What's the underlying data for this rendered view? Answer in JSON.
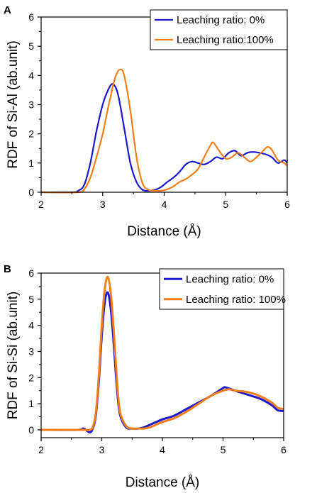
{
  "chart_data": [
    {
      "type": "line",
      "panel_label": "A",
      "xlabel": "Distance (Å)",
      "ylabel": "RDF of Si-Al (ab.unit)",
      "xlim": [
        2,
        6
      ],
      "ylim": [
        0,
        6
      ],
      "xticks": [
        "2",
        "3",
        "4",
        "5",
        "6"
      ],
      "yticks": [
        "0",
        "1",
        "2",
        "3",
        "4",
        "5",
        "6"
      ],
      "grid": false,
      "legend": "top-right",
      "series": [
        {
          "name": "Leaching ratio: 0%",
          "color": "#1a1acc",
          "x": [
            2.0,
            2.5,
            2.6,
            2.7,
            2.8,
            2.9,
            3.0,
            3.1,
            3.17,
            3.25,
            3.35,
            3.45,
            3.55,
            3.65,
            3.75,
            3.85,
            3.95,
            4.05,
            4.15,
            4.25,
            4.35,
            4.45,
            4.55,
            4.65,
            4.75,
            4.85,
            4.95,
            5.05,
            5.15,
            5.25,
            5.35,
            5.45,
            5.55,
            5.65,
            5.75,
            5.85,
            5.95,
            6.0
          ],
          "y": [
            0,
            0,
            0.05,
            0.25,
            1.0,
            2.1,
            3.0,
            3.55,
            3.7,
            3.35,
            2.2,
            1.0,
            0.35,
            0.08,
            0.05,
            0.08,
            0.18,
            0.35,
            0.5,
            0.7,
            0.95,
            1.05,
            1.0,
            0.95,
            1.05,
            1.2,
            1.15,
            1.35,
            1.42,
            1.25,
            1.35,
            1.38,
            1.35,
            1.3,
            1.2,
            1.0,
            1.1,
            1.0
          ]
        },
        {
          "name": "Leaching ratio:100%",
          "color": "#f07f1a",
          "x": [
            2.0,
            2.6,
            2.7,
            2.8,
            2.9,
            3.0,
            3.1,
            3.2,
            3.28,
            3.35,
            3.45,
            3.55,
            3.65,
            3.75,
            3.85,
            3.95,
            4.05,
            4.15,
            4.25,
            4.35,
            4.45,
            4.55,
            4.65,
            4.75,
            4.8,
            4.9,
            5.0,
            5.1,
            5.2,
            5.3,
            5.4,
            5.5,
            5.6,
            5.68,
            5.75,
            5.85,
            5.95,
            6.0
          ],
          "y": [
            0,
            0,
            0.1,
            0.5,
            1.2,
            2.0,
            3.0,
            3.9,
            4.2,
            4.0,
            2.8,
            1.2,
            0.3,
            0.08,
            0.05,
            0.05,
            0.1,
            0.2,
            0.35,
            0.45,
            0.6,
            0.8,
            1.2,
            1.6,
            1.7,
            1.4,
            1.15,
            1.2,
            1.35,
            1.2,
            1.05,
            1.2,
            1.4,
            1.55,
            1.45,
            1.1,
            1.0,
            0.9
          ]
        }
      ]
    },
    {
      "type": "line",
      "panel_label": "B",
      "xlabel": "Distance (Å)",
      "ylabel": "RDF of Si-Si (ab.unit)",
      "xlim": [
        2,
        6
      ],
      "ylim": [
        -0.3,
        6
      ],
      "xticks": [
        "2",
        "3",
        "4",
        "5",
        "6"
      ],
      "yticks": [
        "0",
        "1",
        "2",
        "3",
        "4",
        "5",
        "6"
      ],
      "grid": false,
      "legend": "top-right",
      "series": [
        {
          "name": "Leaching ratio: 0%",
          "color": "#1a1acc",
          "x": [
            2.0,
            2.6,
            2.7,
            2.8,
            2.85,
            2.9,
            2.95,
            3.0,
            3.05,
            3.1,
            3.15,
            3.2,
            3.25,
            3.3,
            3.4,
            3.5,
            3.6,
            3.7,
            3.8,
            3.9,
            4.0,
            4.2,
            4.4,
            4.6,
            4.8,
            5.0,
            5.05,
            5.2,
            5.4,
            5.6,
            5.8,
            5.9,
            6.0
          ],
          "y": [
            0,
            0,
            0.05,
            -0.1,
            0.05,
            0.5,
            1.8,
            3.6,
            4.9,
            5.25,
            4.6,
            3.2,
            1.6,
            0.6,
            0.1,
            0.05,
            0.05,
            0.1,
            0.2,
            0.3,
            0.4,
            0.55,
            0.8,
            1.05,
            1.3,
            1.6,
            1.62,
            1.5,
            1.35,
            1.2,
            0.95,
            0.75,
            0.72
          ]
        },
        {
          "name": "Leaching ratio: 100%",
          "color": "#f07f1a",
          "x": [
            2.0,
            2.6,
            2.7,
            2.8,
            2.85,
            2.9,
            2.95,
            3.0,
            3.05,
            3.1,
            3.15,
            3.2,
            3.25,
            3.3,
            3.4,
            3.5,
            3.6,
            3.7,
            3.8,
            3.9,
            4.0,
            4.2,
            4.4,
            4.6,
            4.8,
            5.0,
            5.1,
            5.2,
            5.4,
            5.6,
            5.8,
            5.9,
            6.0
          ],
          "y": [
            0,
            0,
            0,
            0,
            0.1,
            0.6,
            2.0,
            4.0,
            5.4,
            5.85,
            5.2,
            3.7,
            1.9,
            0.7,
            0.15,
            0.05,
            0.05,
            0.05,
            0.1,
            0.2,
            0.3,
            0.45,
            0.7,
            1.0,
            1.3,
            1.5,
            1.55,
            1.5,
            1.45,
            1.3,
            1.05,
            0.85,
            0.8
          ]
        }
      ]
    }
  ]
}
